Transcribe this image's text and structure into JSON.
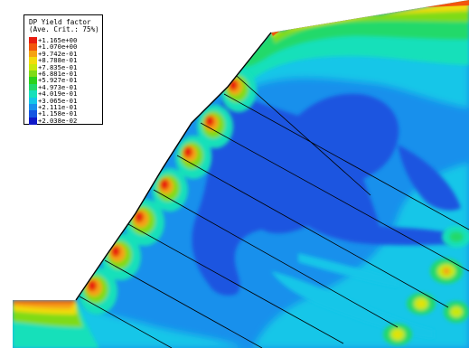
{
  "legend": {
    "title": "DP Yield factor",
    "subtitle": "(Ave. Crit.: 75%)",
    "entries": [
      {
        "label": "+1.165e+00",
        "color": "#e81c10"
      },
      {
        "label": "+1.070e+00",
        "color": "#f2560d"
      },
      {
        "label": "+9.742e-01",
        "color": "#f5a312"
      },
      {
        "label": "+8.788e-01",
        "color": "#f2dc0c"
      },
      {
        "label": "+7.835e-01",
        "color": "#c8e80c"
      },
      {
        "label": "+6.881e-01",
        "color": "#7fdb17"
      },
      {
        "label": "+5.927e-01",
        "color": "#2ad21c"
      },
      {
        "label": "+4.973e-01",
        "color": "#22d96a"
      },
      {
        "label": "+4.019e-01",
        "color": "#18e0ba"
      },
      {
        "label": "+3.065e-01",
        "color": "#14c6e8"
      },
      {
        "label": "+2.111e-01",
        "color": "#1890ec"
      },
      {
        "label": "+1.158e-01",
        "color": "#1456e2"
      },
      {
        "label": "+2.038e-02",
        "color": "#1018c8"
      }
    ]
  },
  "colors": {
    "background": "#ffffff",
    "deep_blue": "#1a55e0",
    "mid_blue": "#1890ec",
    "cyan": "#14c6e8",
    "teal": "#18e0ba",
    "green": "#22d96a",
    "lime": "#7fdb17",
    "yellow": "#f2dc0c",
    "orange": "#f5a312",
    "red_orange": "#f2560d",
    "red": "#e81c10",
    "anchor_line": "#000000"
  }
}
